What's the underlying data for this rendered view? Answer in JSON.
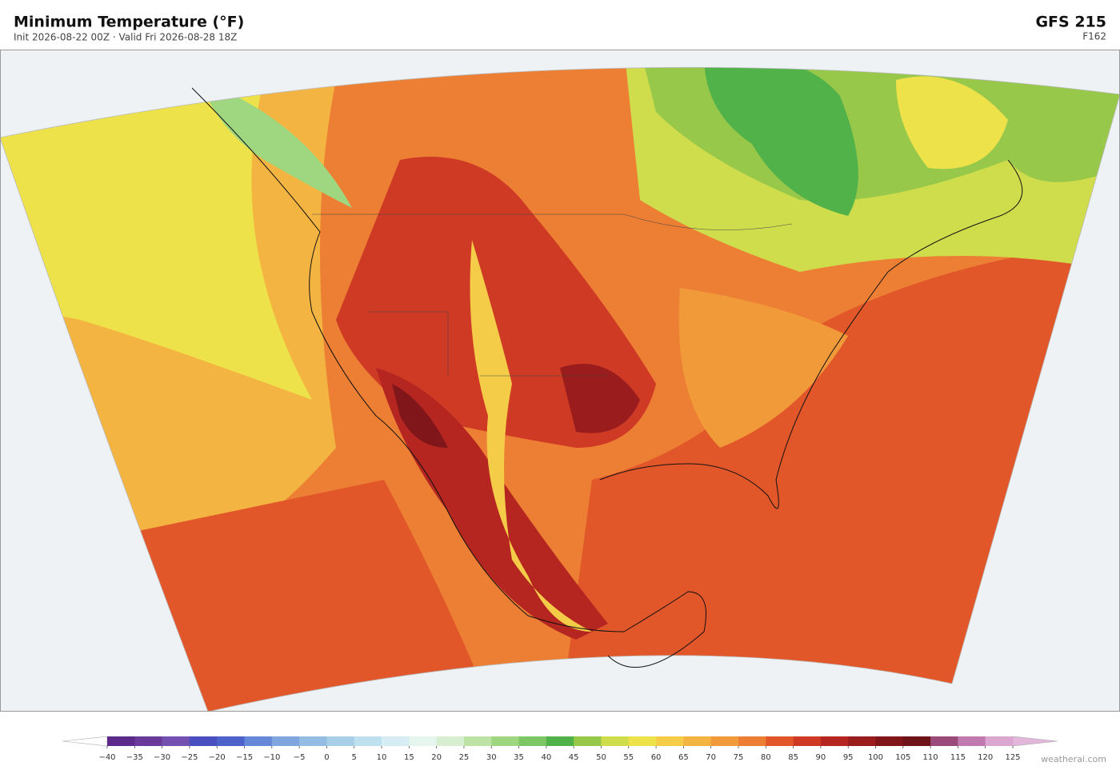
{
  "header": {
    "title": "Minimum Temperature  (°F)",
    "subtitle": "Init 2026-08-22 00Z  ·  Valid Fri 2026-08-28 18Z",
    "model": "GFS  215",
    "forecast_hour": "F162"
  },
  "colorbar": {
    "ticks": [
      {
        "value": -40,
        "label": "−40"
      },
      {
        "value": -35,
        "label": "−35"
      },
      {
        "value": -30,
        "label": "−30"
      },
      {
        "value": -25,
        "label": "−25"
      },
      {
        "value": -20,
        "label": "−20"
      },
      {
        "value": -15,
        "label": "−15"
      },
      {
        "value": -10,
        "label": "−10"
      },
      {
        "value": -5,
        "label": "−5"
      },
      0,
      5,
      10,
      15,
      20,
      25,
      30,
      35,
      40,
      45,
      50,
      55,
      60,
      65,
      70,
      75,
      80,
      85,
      90,
      95,
      100,
      105,
      110,
      115,
      120,
      125
    ],
    "colors": [
      "#5b2a8a",
      "#6a3a9a",
      "#7450b0",
      "#4a4fc0",
      "#4e62cc",
      "#6588d8",
      "#7fa6de",
      "#93bde3",
      "#a8cfe8",
      "#bfe0ef",
      "#d6edf3",
      "#e6f5ee",
      "#d7efd0",
      "#bde3a4",
      "#9fd680",
      "#7cc664",
      "#52b24a",
      "#97c84a",
      "#cfdc4c",
      "#eee24a",
      "#f5cc48",
      "#f4b441",
      "#f09a3a",
      "#ec7f34",
      "#e2572a",
      "#cf3a25",
      "#b52620",
      "#9a1c1c",
      "#80161a",
      "#6e1418",
      "#9b4a7c",
      "#c07ab0",
      "#dba6cf"
    ],
    "under_color": "#ffffff",
    "over_color": "#e2b7db"
  },
  "watermark": "weatherai.com"
}
